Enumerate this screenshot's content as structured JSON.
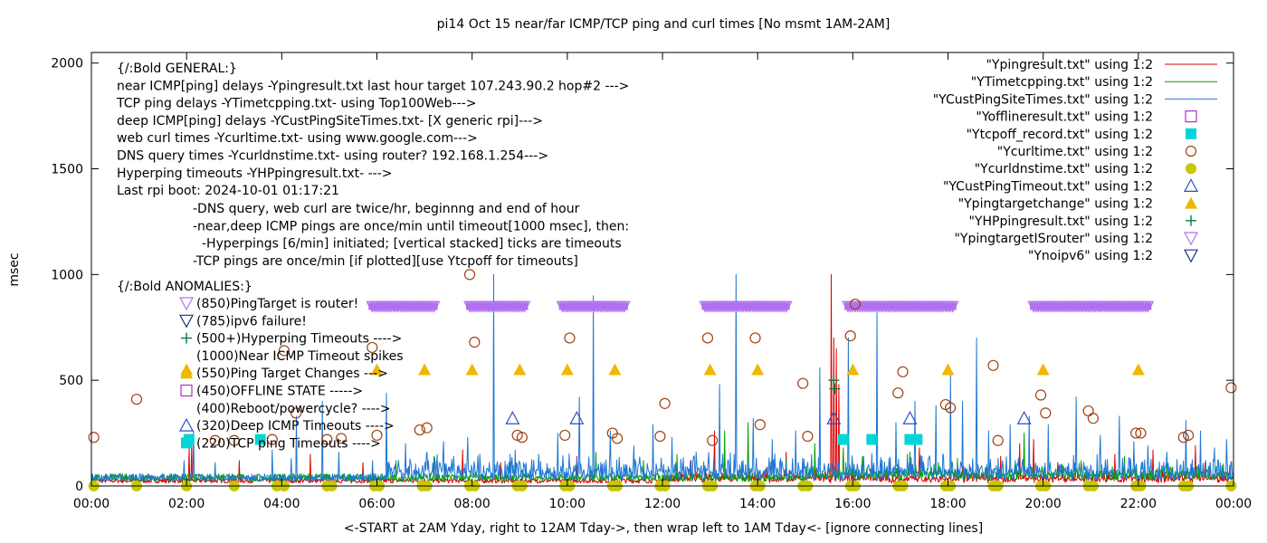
{
  "chart_data": {
    "type": "line",
    "title": "pi14 Oct 15  near/far ICMP/TCP ping and curl times [No msmt 1AM-2AM]",
    "ylabel": "msec",
    "xlabel": "<-START at 2AM Yday, right to 12AM Tday->, then wrap left to 1AM Tday<- [ignore connecting lines]",
    "ylim": [
      0,
      2050
    ],
    "xlim_hours": [
      0,
      24
    ],
    "yticks": [
      "0",
      "500",
      "1000",
      "1500",
      "2000"
    ],
    "ytick_values": [
      0,
      500,
      1000,
      1500,
      2000
    ],
    "xticks": [
      "00:00",
      "02:00",
      "04:00",
      "06:00",
      "08:00",
      "10:00",
      "12:00",
      "14:00",
      "16:00",
      "18:00",
      "20:00",
      "22:00",
      "00:00"
    ],
    "grid": false,
    "legend_position": "top-right",
    "legend": [
      {
        "label": "\"Ypingresult.txt\" using 1:2",
        "marker": "line",
        "color": "#e00000"
      },
      {
        "label": "\"YTimetcpping.txt\" using 1:2",
        "marker": "line",
        "color": "#00a000"
      },
      {
        "label": "\"YCustPingSiteTimes.txt\" using 1:2",
        "marker": "line",
        "color": "#1f77d4"
      },
      {
        "label": "\"Yofflineresult.txt\" using 1:2",
        "marker": "open-square",
        "color": "#b030c8"
      },
      {
        "label": "\"Ytcpoff_record.txt\" using 1:2",
        "marker": "filled-square",
        "color": "#00d6d6"
      },
      {
        "label": "\"Ycurltime.txt\" using 1:2",
        "marker": "open-circle",
        "color": "#a04010"
      },
      {
        "label": "\"Ycurldnstime.txt\" using 1:2",
        "marker": "filled-circle",
        "color": "#c8c800"
      },
      {
        "label": "\"YCustPingTimeout.txt\" using 1:2",
        "marker": "open-triangle-up",
        "color": "#3050c0"
      },
      {
        "label": "\"Ypingtargetchange\" using 1:2",
        "marker": "filled-triangle-up",
        "color": "#f0b800"
      },
      {
        "label": "\"YHPpingresult.txt\" using 1:2",
        "marker": "plus",
        "color": "#008040"
      },
      {
        "label": "\"YpingtargetISrouter\" using 1:2",
        "marker": "open-triangle-down",
        "color": "#b070f0"
      },
      {
        "label": "\"Ynoipv6\" using 1:2",
        "marker": "open-triangle-down",
        "color": "#203880"
      }
    ],
    "notes_general": [
      "{/:Bold GENERAL:}",
      "near ICMP[ping] delays -Ypingresult.txt last hour target 107.243.90.2 hop#2 --->",
      "TCP ping delays -YTimetcpping.txt- using Top100Web--->",
      "deep ICMP[ping] delays -YCustPingSiteTimes.txt- [X generic rpi]--->",
      "web curl times -Ycurltime.txt- using www.google.com--->",
      "DNS query times -Ycurldnstime.txt- using router? 192.168.1.254--->",
      "Hyperping timeouts -YHPpingresult.txt- --->",
      "Last rpi boot: 2024-10-01 01:17:21"
    ],
    "notes_detail": [
      "-DNS query, web curl are twice/hr, beginnng and end of hour",
      "-near,deep ICMP pings are once/min until timeout[1000 msec], then:",
      "-Hyperpings [6/min] initiated; [vertical stacked] ticks are timeouts",
      "-TCP pings are once/min [if plotted][use Ytcpoff for timeouts]"
    ],
    "notes_anomalies_title": "{/:Bold ANOMALIES:}",
    "anomalies": [
      {
        "label": "(850)PingTarget is router!",
        "marker": "open-triangle-down",
        "color": "#b070f0"
      },
      {
        "label": "(785)ipv6 failure!",
        "marker": "open-triangle-down",
        "color": "#203880"
      },
      {
        "label": "(500+)Hyperping Timeouts ---->",
        "marker": "plus",
        "color": "#008040"
      },
      {
        "label": "(1000)Near ICMP Timeout spikes",
        "marker": "none",
        "color": "#e00000"
      },
      {
        "label": "(550)Ping Target Changes --->",
        "marker": "filled-triangle-up",
        "color": "#f0b800"
      },
      {
        "label": "(450)OFFLINE STATE ----->",
        "marker": "open-square",
        "color": "#b030c8"
      },
      {
        "label": "(400)Reboot/powercycle? ---->",
        "marker": "none",
        "color": "#000000"
      },
      {
        "label": "(320)Deep ICMP Timeouts ---->",
        "marker": "open-triangle-up",
        "color": "#3050c0"
      },
      {
        "label": "(220)TCP ping Timeouts ---->",
        "marker": "filled-square",
        "color": "#00d6d6"
      }
    ],
    "series": [
      {
        "name": "\"Ypingresult.txt\" using 1:2",
        "color": "#e00000",
        "baseline_msec": 25,
        "spikes": [
          [
            2.05,
            180
          ],
          [
            2.1,
            210
          ],
          [
            3.1,
            120
          ],
          [
            4.6,
            150
          ],
          [
            5.7,
            110
          ],
          [
            7.8,
            170
          ],
          [
            8.6,
            110
          ],
          [
            10.2,
            140
          ],
          [
            12.6,
            120
          ],
          [
            13.1,
            260
          ],
          [
            14.2,
            90
          ],
          [
            14.6,
            160
          ],
          [
            15.2,
            150
          ],
          [
            15.55,
            1000
          ],
          [
            15.6,
            700
          ],
          [
            15.65,
            650
          ],
          [
            15.7,
            480
          ],
          [
            16.4,
            130
          ],
          [
            17.4,
            180
          ],
          [
            18.3,
            90
          ],
          [
            19.1,
            140
          ],
          [
            19.5,
            200
          ],
          [
            19.8,
            220
          ],
          [
            20.3,
            110
          ],
          [
            21.5,
            150
          ],
          [
            22.3,
            170
          ],
          [
            23.2,
            190
          ],
          [
            23.4,
            110
          ],
          [
            23.9,
            60
          ]
        ]
      },
      {
        "name": "\"YTimetcpping.txt\" using 1:2",
        "color": "#00a000",
        "baseline_msec": 40,
        "spikes": [
          [
            6.4,
            120
          ],
          [
            7.2,
            140
          ],
          [
            8.9,
            110
          ],
          [
            10.6,
            160
          ],
          [
            11.6,
            120
          ],
          [
            12.3,
            150
          ],
          [
            13.3,
            260
          ],
          [
            13.8,
            300
          ],
          [
            14.6,
            130
          ],
          [
            15.2,
            200
          ],
          [
            15.8,
            180
          ],
          [
            16.2,
            140
          ],
          [
            17.2,
            160
          ],
          [
            17.8,
            110
          ],
          [
            18.2,
            130
          ],
          [
            19.6,
            250
          ],
          [
            20.8,
            120
          ],
          [
            21.7,
            140
          ],
          [
            22.6,
            130
          ],
          [
            23.5,
            110
          ]
        ]
      },
      {
        "name": "\"YCustPingSiteTimes.txt\" using 1:2",
        "color": "#1f77d4",
        "baseline_msec": 40,
        "spikes": [
          [
            1.95,
            120
          ],
          [
            2.15,
            260
          ],
          [
            2.6,
            110
          ],
          [
            3.8,
            170
          ],
          [
            4.2,
            130
          ],
          [
            4.3,
            330
          ],
          [
            4.85,
            400
          ],
          [
            5.2,
            160
          ],
          [
            5.9,
            120
          ],
          [
            6.2,
            440
          ],
          [
            6.6,
            200
          ],
          [
            7.05,
            160
          ],
          [
            7.4,
            210
          ],
          [
            7.9,
            230
          ],
          [
            8.45,
            1000
          ],
          [
            8.9,
            170
          ],
          [
            9.4,
            150
          ],
          [
            9.8,
            250
          ],
          [
            10.25,
            420
          ],
          [
            10.55,
            900
          ],
          [
            10.9,
            260
          ],
          [
            11.4,
            190
          ],
          [
            11.8,
            290
          ],
          [
            12.2,
            230
          ],
          [
            12.7,
            160
          ],
          [
            13.2,
            480
          ],
          [
            13.55,
            1000
          ],
          [
            13.9,
            320
          ],
          [
            14.3,
            220
          ],
          [
            14.8,
            260
          ],
          [
            15.3,
            560
          ],
          [
            15.9,
            700
          ],
          [
            16.5,
            820
          ],
          [
            16.9,
            300
          ],
          [
            17.3,
            400
          ],
          [
            17.75,
            380
          ],
          [
            18.05,
            540
          ],
          [
            18.3,
            400
          ],
          [
            18.6,
            700
          ],
          [
            18.85,
            260
          ],
          [
            19.3,
            290
          ],
          [
            19.7,
            330
          ],
          [
            20.1,
            290
          ],
          [
            20.7,
            420
          ],
          [
            21.2,
            240
          ],
          [
            21.6,
            330
          ],
          [
            21.9,
            210
          ],
          [
            22.2,
            190
          ],
          [
            22.6,
            160
          ],
          [
            23.0,
            310
          ],
          [
            23.3,
            260
          ],
          [
            23.6,
            180
          ],
          [
            23.85,
            220
          ]
        ]
      }
    ],
    "points_curltime": [
      [
        0.05,
        230
      ],
      [
        0.95,
        410
      ],
      [
        2.6,
        215
      ],
      [
        3.0,
        215
      ],
      [
        3.8,
        220
      ],
      [
        4.05,
        640
      ],
      [
        4.3,
        345
      ],
      [
        4.95,
        220
      ],
      [
        5.25,
        225
      ],
      [
        5.9,
        655
      ],
      [
        6.0,
        240
      ],
      [
        6.9,
        265
      ],
      [
        7.05,
        275
      ],
      [
        7.95,
        1000
      ],
      [
        8.05,
        680
      ],
      [
        8.95,
        240
      ],
      [
        9.05,
        230
      ],
      [
        9.95,
        240
      ],
      [
        10.05,
        700
      ],
      [
        10.95,
        250
      ],
      [
        11.05,
        225
      ],
      [
        11.95,
        235
      ],
      [
        12.05,
        390
      ],
      [
        12.95,
        700
      ],
      [
        13.05,
        215
      ],
      [
        13.95,
        700
      ],
      [
        14.05,
        290
      ],
      [
        14.95,
        485
      ],
      [
        15.05,
        235
      ],
      [
        15.95,
        710
      ],
      [
        16.05,
        860
      ],
      [
        16.95,
        440
      ],
      [
        17.05,
        540
      ],
      [
        17.95,
        385
      ],
      [
        18.05,
        370
      ],
      [
        18.95,
        570
      ],
      [
        19.05,
        215
      ],
      [
        19.95,
        430
      ],
      [
        20.05,
        345
      ],
      [
        20.95,
        355
      ],
      [
        21.05,
        320
      ],
      [
        21.95,
        250
      ],
      [
        22.05,
        250
      ],
      [
        22.95,
        230
      ],
      [
        23.05,
        240
      ],
      [
        23.95,
        465
      ]
    ],
    "points_curldnstime": [
      [
        0.05,
        0
      ],
      [
        0.95,
        0
      ],
      [
        2.0,
        0
      ],
      [
        3.0,
        0
      ],
      [
        3.9,
        0
      ],
      [
        4.05,
        0
      ],
      [
        4.95,
        0
      ],
      [
        5.05,
        0
      ],
      [
        5.95,
        0
      ],
      [
        6.05,
        0
      ],
      [
        6.95,
        0
      ],
      [
        7.05,
        0
      ],
      [
        7.95,
        0
      ],
      [
        8.05,
        0
      ],
      [
        8.95,
        0
      ],
      [
        9.05,
        0
      ],
      [
        9.95,
        0
      ],
      [
        10.05,
        0
      ],
      [
        10.95,
        0
      ],
      [
        11.05,
        0
      ],
      [
        11.95,
        0
      ],
      [
        12.05,
        0
      ],
      [
        12.95,
        0
      ],
      [
        13.05,
        0
      ],
      [
        13.95,
        0
      ],
      [
        14.05,
        0
      ],
      [
        14.95,
        0
      ],
      [
        15.05,
        0
      ],
      [
        15.95,
        0
      ],
      [
        16.05,
        0
      ],
      [
        16.95,
        0
      ],
      [
        17.05,
        0
      ],
      [
        17.95,
        0
      ],
      [
        18.05,
        0
      ],
      [
        18.95,
        0
      ],
      [
        19.05,
        0
      ],
      [
        19.95,
        0
      ],
      [
        20.05,
        0
      ],
      [
        20.95,
        0
      ],
      [
        21.05,
        0
      ],
      [
        21.95,
        0
      ],
      [
        22.05,
        0
      ],
      [
        22.95,
        0
      ],
      [
        23.05,
        0
      ],
      [
        23.95,
        0
      ]
    ],
    "points_ping_target_change": [
      [
        2.0,
        550
      ],
      [
        6.0,
        550
      ],
      [
        7.0,
        550
      ],
      [
        8.0,
        550
      ],
      [
        9.0,
        550
      ],
      [
        10.0,
        550
      ],
      [
        11.0,
        550
      ],
      [
        13.0,
        550
      ],
      [
        14.0,
        550
      ],
      [
        16.0,
        550
      ],
      [
        18.0,
        550
      ],
      [
        20.0,
        550
      ],
      [
        22.0,
        550
      ]
    ],
    "points_deep_icmp_timeout": [
      [
        8.85,
        320
      ],
      [
        10.2,
        320
      ],
      [
        15.6,
        320
      ],
      [
        17.2,
        320
      ],
      [
        19.6,
        320
      ]
    ],
    "points_tcp_timeout": [
      [
        2.05,
        220
      ],
      [
        3.55,
        220
      ],
      [
        15.8,
        220
      ],
      [
        16.4,
        220
      ],
      [
        17.2,
        220
      ],
      [
        17.35,
        220
      ]
    ],
    "points_hyperping_timeout": [
      [
        15.6,
        500
      ],
      [
        15.62,
        460
      ]
    ],
    "ranges_ping_target_router": [
      [
        5.9,
        7.2
      ],
      [
        7.95,
        9.1
      ],
      [
        9.9,
        11.2
      ],
      [
        12.9,
        14.6
      ],
      [
        15.9,
        18.1
      ],
      [
        19.8,
        22.2
      ]
    ],
    "router_level_msec": 850
  }
}
